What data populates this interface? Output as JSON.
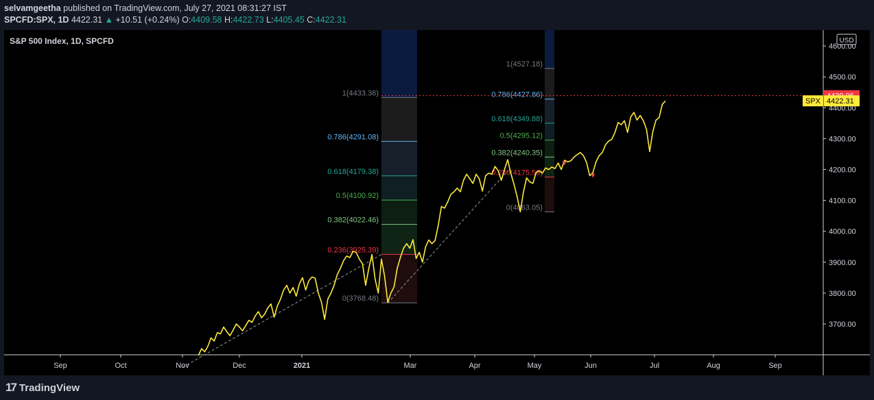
{
  "header": {
    "author": "selvamgeetha",
    "published_text": "published on TradingView.com, July 27, 2021 08:31:27 IST",
    "symbol": "SPCFD:SPX, 1D",
    "last": "4422.31",
    "change": "+10.51 (+0.24%)",
    "o_label": "O:",
    "o_value": "4409.58",
    "h_label": "H:",
    "h_value": "4422.73",
    "l_label": "L:",
    "l_value": "4405.45",
    "c_label": "C:",
    "c_value": "4422.31"
  },
  "pane": {
    "title": "S&P 500 Index, 1D, SPCFD"
  },
  "footer": {
    "brand": "TradingView"
  },
  "colors": {
    "background": "#000000",
    "line": "#ffeb3b",
    "price_red": "#f23645",
    "price_yellow": "#ffeb3b",
    "axis_text": "#d1d4dc"
  },
  "chart_data": {
    "type": "line",
    "currency_label": "USD",
    "x_ticks": [
      "Sep",
      "Oct",
      "Nov",
      "Dec",
      "2021",
      "Mar",
      "Apr",
      "May",
      "Jun",
      "Jul",
      "Aug",
      "Sep"
    ],
    "y_ticks": [
      "3700.00",
      "3800.00",
      "3900.00",
      "4000.00",
      "4100.00",
      "4200.00",
      "4300.00",
      "4400.00",
      "4500.00",
      "4600.00"
    ],
    "ylim": [
      3590,
      4640
    ],
    "price_labels": {
      "high": "4439.06",
      "symbol": "SPX",
      "last": "4422.31"
    },
    "series": [
      {
        "values": [
          [
            -3,
            3598
          ],
          [
            -2,
            3620
          ],
          [
            -1,
            3610
          ],
          [
            0,
            3628
          ],
          [
            1,
            3655
          ],
          [
            2,
            3645
          ],
          [
            3,
            3672
          ],
          [
            4,
            3668
          ],
          [
            5,
            3690
          ],
          [
            6,
            3675
          ],
          [
            7,
            3662
          ],
          [
            8,
            3680
          ],
          [
            9,
            3700
          ],
          [
            10,
            3690
          ],
          [
            11,
            3678
          ],
          [
            12,
            3695
          ],
          [
            13,
            3712
          ],
          [
            14,
            3705
          ],
          [
            15,
            3726
          ],
          [
            16,
            3740
          ],
          [
            17,
            3720
          ],
          [
            18,
            3732
          ],
          [
            19,
            3752
          ],
          [
            20,
            3765
          ],
          [
            21,
            3722
          ],
          [
            22,
            3758
          ],
          [
            23,
            3780
          ],
          [
            24,
            3810
          ],
          [
            25,
            3825
          ],
          [
            26,
            3800
          ],
          [
            27,
            3818
          ],
          [
            28,
            3790
          ],
          [
            29,
            3830
          ],
          [
            30,
            3850
          ],
          [
            31,
            3810
          ],
          [
            32,
            3840
          ],
          [
            33,
            3852
          ],
          [
            34,
            3848
          ],
          [
            35,
            3800
          ],
          [
            36,
            3770
          ],
          [
            37,
            3715
          ],
          [
            38,
            3780
          ],
          [
            39,
            3800
          ],
          [
            40,
            3825
          ],
          [
            41,
            3860
          ],
          [
            42,
            3880
          ],
          [
            43,
            3905
          ],
          [
            44,
            3920
          ],
          [
            45,
            3915
          ],
          [
            46,
            3935
          ],
          [
            47,
            3932
          ],
          [
            48,
            3910
          ],
          [
            49,
            3895
          ],
          [
            50,
            3825
          ],
          [
            51,
            3880
          ],
          [
            52,
            3925
          ],
          [
            53,
            3845
          ],
          [
            54,
            3800
          ],
          [
            55,
            3910
          ],
          [
            56,
            3855
          ],
          [
            57,
            3770
          ],
          [
            58,
            3800
          ],
          [
            59,
            3820
          ],
          [
            60,
            3880
          ],
          [
            61,
            3915
          ],
          [
            62,
            3945
          ],
          [
            63,
            3960
          ],
          [
            64,
            3945
          ],
          [
            65,
            3973
          ],
          [
            66,
            3912
          ],
          [
            67,
            3932
          ],
          [
            68,
            3900
          ],
          [
            69,
            3950
          ],
          [
            70,
            3972
          ],
          [
            71,
            3960
          ],
          [
            72,
            3970
          ],
          [
            73,
            4019
          ],
          [
            74,
            4080
          ],
          [
            75,
            4075
          ],
          [
            76,
            4095
          ],
          [
            77,
            4120
          ],
          [
            78,
            4128
          ],
          [
            79,
            4140
          ],
          [
            80,
            4128
          ],
          [
            81,
            4165
          ],
          [
            82,
            4185
          ],
          [
            83,
            4170
          ],
          [
            84,
            4155
          ],
          [
            85,
            4185
          ],
          [
            86,
            4170
          ],
          [
            87,
            4130
          ],
          [
            88,
            4180
          ],
          [
            89,
            4188
          ],
          [
            90,
            4185
          ],
          [
            91,
            4210
          ],
          [
            92,
            4196
          ],
          [
            93,
            4165
          ],
          [
            94,
            4200
          ],
          [
            95,
            4232
          ],
          [
            96,
            4188
          ],
          [
            97,
            4152
          ],
          [
            98,
            4112
          ],
          [
            99,
            4063
          ],
          [
            100,
            4127
          ],
          [
            101,
            4173
          ],
          [
            102,
            4160
          ],
          [
            103,
            4155
          ],
          [
            104,
            4190
          ],
          [
            105,
            4196
          ],
          [
            106,
            4188
          ],
          [
            107,
            4205
          ],
          [
            108,
            4200
          ],
          [
            109,
            4208
          ],
          [
            110,
            4203
          ],
          [
            111,
            4221
          ],
          [
            112,
            4200
          ],
          [
            113,
            4230
          ],
          [
            114,
            4225
          ],
          [
            115,
            4228
          ],
          [
            116,
            4240
          ],
          [
            117,
            4248
          ],
          [
            118,
            4255
          ],
          [
            119,
            4245
          ],
          [
            120,
            4223
          ],
          [
            121,
            4180
          ],
          [
            122,
            4190
          ],
          [
            123,
            4225
          ],
          [
            124,
            4245
          ],
          [
            125,
            4255
          ],
          [
            126,
            4280
          ],
          [
            127,
            4292
          ],
          [
            128,
            4298
          ],
          [
            129,
            4320
          ],
          [
            130,
            4352
          ],
          [
            131,
            4345
          ],
          [
            132,
            4358
          ],
          [
            133,
            4320
          ],
          [
            134,
            4370
          ],
          [
            135,
            4385
          ],
          [
            136,
            4360
          ],
          [
            137,
            4375
          ],
          [
            138,
            4358
          ],
          [
            139,
            4330
          ],
          [
            140,
            4258
          ],
          [
            141,
            4323
          ],
          [
            142,
            4360
          ],
          [
            143,
            4368
          ],
          [
            144,
            4411
          ],
          [
            145,
            4422
          ]
        ]
      }
    ],
    "fib_left": {
      "levels": [
        {
          "label": "1(4433.36)",
          "value": 4433.36,
          "color": "#787b86"
        },
        {
          "label": "0.786(4291.08)",
          "value": 4291.08,
          "color": "#64b5f6"
        },
        {
          "label": "0.618(4179.38)",
          "value": 4179.38,
          "color": "#26a69a"
        },
        {
          "label": "0.5(4100.92)",
          "value": 4100.92,
          "color": "#4caf50"
        },
        {
          "label": "0.382(4022.46)",
          "value": 4022.46,
          "color": "#81c784"
        },
        {
          "label": "0.236(3925.39)",
          "value": 3925.39,
          "color": "#f23645"
        },
        {
          "label": "0(3768.48)",
          "value": 3768.48,
          "color": "#787b86"
        }
      ]
    },
    "fib_right": {
      "levels": [
        {
          "label": "1(4527.18)",
          "value": 4527.18,
          "color": "#787b86"
        },
        {
          "label": "0.786(4427.86)",
          "value": 4427.86,
          "color": "#64b5f6"
        },
        {
          "label": "0.618(4349.88)",
          "value": 4349.88,
          "color": "#26a69a"
        },
        {
          "label": "0.5(4295.12)",
          "value": 4295.12,
          "color": "#4caf50"
        },
        {
          "label": "0.382(4240.35)",
          "value": 4240.35,
          "color": "#81c784"
        },
        {
          "label": "0.236(4175.59)",
          "value": 4175.59,
          "color": "#f23645"
        },
        {
          "label": "0(4063.05)",
          "value": 4063.05,
          "color": "#787b86"
        }
      ]
    },
    "trend_lines": [
      {
        "from": [
          -8,
          3560
        ],
        "to": [
          55,
          3925
        ]
      },
      {
        "from": [
          57,
          3768
        ],
        "to": [
          95,
          4195
        ]
      }
    ],
    "arrows_down": [
      [
        113,
        4218
      ],
      [
        122,
        4178
      ]
    ],
    "dotted_high": 4439.06
  }
}
